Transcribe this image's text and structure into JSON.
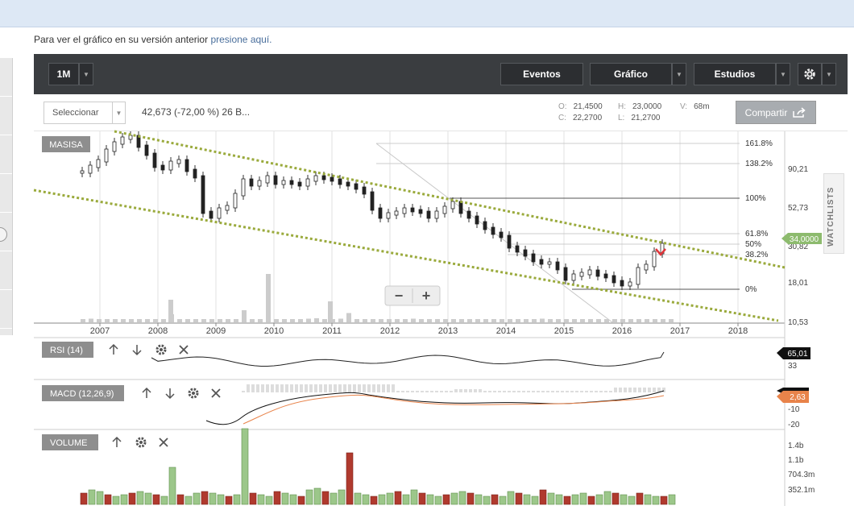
{
  "notice": {
    "prefix": "Para ver el gráfico en su versión anterior ",
    "link": "presione aquí."
  },
  "toolbar": {
    "period": "1M",
    "events": "Eventos",
    "chart": "Gráfico",
    "studies": "Estudios"
  },
  "info": {
    "select": "Seleccionar",
    "summary": "42,673 (-72,00 %) 26 B...",
    "open_label": "O:",
    "open": "21,4500",
    "high_label": "H:",
    "high": "23,0000",
    "volume_label": "V:",
    "volume": "68m",
    "close_label": "C:",
    "close": "22,2700",
    "low_label": "L:",
    "low": "21,2700",
    "share": "Compartir"
  },
  "watchlist": "WATCHLISTS",
  "main_panel": {
    "symbol": "MASISA",
    "y_ticks": [
      "90,21",
      "52,73",
      "30,82",
      "18,01",
      "10,53"
    ],
    "current_price": "34,0000",
    "fib_levels": [
      "161.8%",
      "138.2%",
      "100%",
      "61.8%",
      "50%",
      "38.2%",
      "0%"
    ],
    "years": [
      "2007",
      "2008",
      "2009",
      "2010",
      "2011",
      "2012",
      "2013",
      "2014",
      "2015",
      "2016",
      "2017",
      "2018"
    ],
    "zoom_out": "−",
    "zoom_in": "+"
  },
  "rsi_panel": {
    "label": "RSI (14)",
    "value": "65,01",
    "tick": "33"
  },
  "macd_panel": {
    "label": "MACD (12,26,9)",
    "value": "2,63",
    "ticks": [
      "-10",
      "-20"
    ]
  },
  "volume_panel": {
    "label": "VOLUME",
    "ticks": [
      "1.4b",
      "1.1b",
      "704.3m",
      "352.1m"
    ]
  },
  "colors": {
    "toolbar": "#3a3d40",
    "trend": "#9aaa3c",
    "up": "#9cc78a",
    "down": "#b03a2e",
    "price_badge": "#8dbb6e"
  },
  "icons": [
    "gear-icon",
    "chevron-down-icon",
    "share-icon",
    "arrow-up-icon",
    "arrow-down-icon",
    "close-icon"
  ]
}
